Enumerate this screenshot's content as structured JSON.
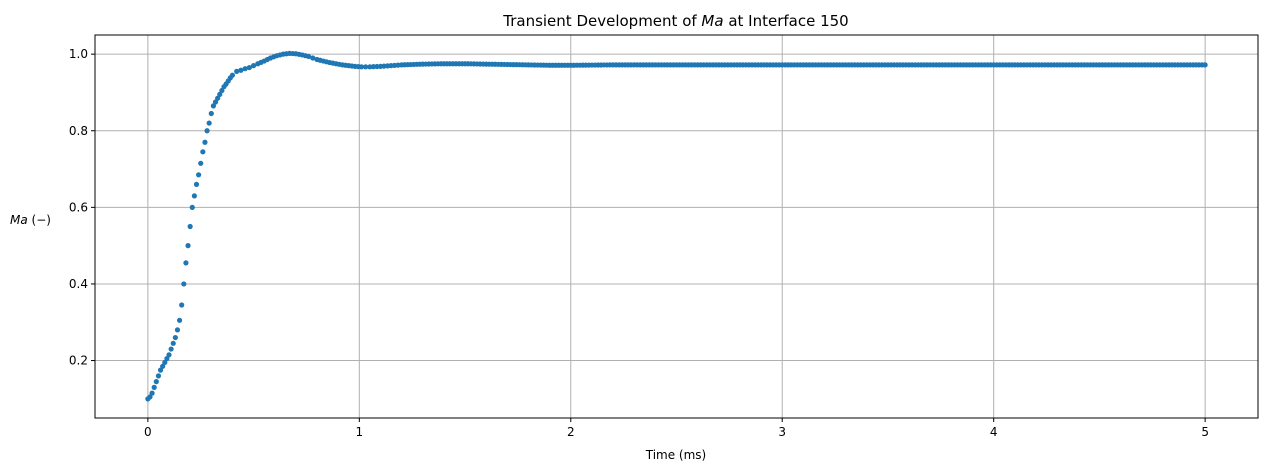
{
  "chart_data": {
    "type": "scatter",
    "title_prefix": "Transient Development of ",
    "title_symbol": "Ma",
    "title_suffix": " at Interface 150",
    "xlabel": "Time (ms)",
    "ylabel_symbol": "Ma",
    "ylabel_unit": " (−)",
    "xlim": [
      -0.25,
      5.25
    ],
    "ylim": [
      0.05,
      1.05
    ],
    "xticks": [
      0,
      1,
      2,
      3,
      4,
      5
    ],
    "xtick_labels": [
      "0",
      "1",
      "2",
      "3",
      "4",
      "5"
    ],
    "yticks": [
      0.2,
      0.4,
      0.6,
      0.8,
      1.0
    ],
    "ytick_labels": [
      "0.2",
      "0.4",
      "0.6",
      "0.8",
      "1.0"
    ],
    "grid": true,
    "color": "#1f77b4",
    "series": [
      {
        "x": [
          0.0,
          0.01,
          0.02,
          0.03,
          0.04,
          0.05,
          0.06,
          0.07,
          0.08,
          0.09,
          0.1,
          0.11,
          0.12,
          0.13,
          0.14,
          0.15,
          0.16,
          0.17,
          0.18,
          0.19,
          0.2,
          0.21,
          0.22,
          0.23,
          0.24,
          0.25,
          0.26,
          0.27,
          0.28,
          0.29,
          0.3,
          0.31,
          0.32,
          0.33,
          0.34,
          0.35,
          0.36,
          0.37,
          0.38,
          0.39,
          0.4,
          0.42,
          0.44,
          0.46,
          0.48,
          0.5,
          0.52,
          0.55,
          0.58,
          0.61,
          0.64,
          0.67,
          0.7,
          0.73,
          0.76,
          0.78,
          0.8,
          0.83,
          0.86,
          0.89,
          0.92,
          0.95,
          0.98,
          1.01,
          1.05,
          1.1,
          1.15,
          1.2,
          1.3,
          1.4,
          1.5,
          1.6,
          1.7,
          1.8,
          1.9,
          2.0,
          2.2,
          2.5,
          2.8,
          3.0,
          3.5,
          4.0,
          4.5,
          5.0
        ],
        "y": [
          0.1,
          0.105,
          0.115,
          0.13,
          0.145,
          0.16,
          0.175,
          0.185,
          0.195,
          0.205,
          0.215,
          0.23,
          0.245,
          0.26,
          0.28,
          0.305,
          0.345,
          0.4,
          0.455,
          0.5,
          0.55,
          0.6,
          0.63,
          0.66,
          0.685,
          0.715,
          0.745,
          0.77,
          0.8,
          0.82,
          0.845,
          0.865,
          0.875,
          0.885,
          0.895,
          0.905,
          0.915,
          0.922,
          0.93,
          0.938,
          0.945,
          0.955,
          0.958,
          0.962,
          0.965,
          0.97,
          0.975,
          0.982,
          0.99,
          0.996,
          1.0,
          1.002,
          1.001,
          0.998,
          0.994,
          0.99,
          0.986,
          0.982,
          0.978,
          0.975,
          0.972,
          0.97,
          0.968,
          0.967,
          0.967,
          0.968,
          0.97,
          0.972,
          0.974,
          0.975,
          0.975,
          0.974,
          0.973,
          0.972,
          0.971,
          0.971,
          0.972,
          0.972,
          0.972,
          0.972,
          0.972,
          0.972,
          0.972,
          0.972
        ]
      }
    ]
  }
}
